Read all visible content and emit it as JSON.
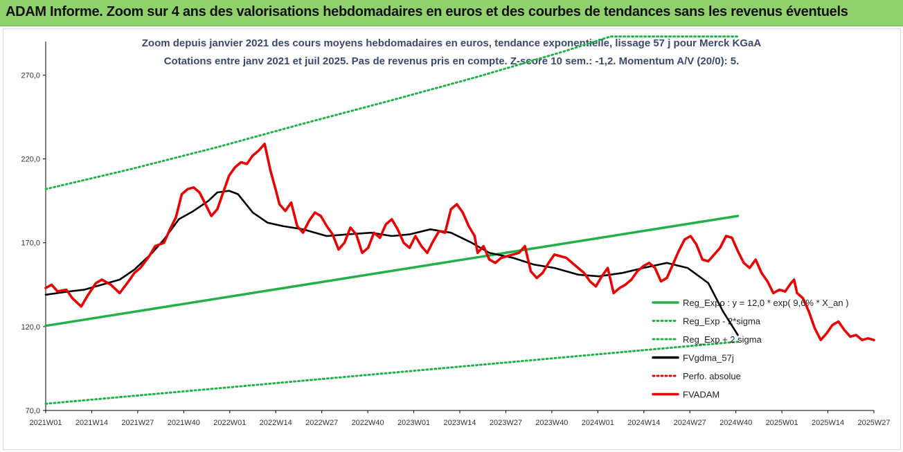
{
  "banner": {
    "text": "ADAM Informe. Zoom sur 4 ans des valorisations hebdomadaires en euros et des courbes de tendances sans les revenus éventuels",
    "color": "#8fd16a"
  },
  "chart_data": {
    "type": "line",
    "title_lines": [
      "Zoom depuis janvier 2021 des cours moyens hebdomadaires en euros, tendance exponentielle, lissage 57 j pour Merck KGaA",
      "Cotations entre janv 2021 et juil 2025. Pas de revenus pris en compte. Z-score 10 sem.: -1,2. Momentum A/V (20/0): 5."
    ],
    "xlabel": "",
    "ylabel": "",
    "ylim": [
      70,
      290
    ],
    "x_ticks": [
      "2021W01",
      "2021W14",
      "2021W27",
      "2021W40",
      "2022W01",
      "2022W14",
      "2022W27",
      "2022W40",
      "2023W01",
      "2023W14",
      "2023W27",
      "2023W40",
      "2024W01",
      "2024W14",
      "2024W27",
      "2024W40",
      "2025W01",
      "2025W14",
      "2025W27"
    ],
    "y_ticks": [
      "70,0",
      "120,0",
      "170,0",
      "220,0",
      "270,0"
    ],
    "y_tick_values": [
      70,
      120,
      170,
      220,
      270
    ],
    "grid": false,
    "legend_position": "right",
    "series": [
      {
        "name": "Reg_Expo : y = 12,0 * exp( 9,6% * X_an )",
        "color": "#22b04b",
        "style": "solid",
        "points": [
          [
            0,
            120.5
          ],
          [
            234,
            186
          ]
        ]
      },
      {
        "name": "Reg_Exp - 2*sigma",
        "color": "#22b04b",
        "style": "dotted",
        "points": [
          [
            0,
            74
          ],
          [
            234,
            111
          ]
        ]
      },
      {
        "name": "Reg_Exp + 2 sigma",
        "color": "#22b04b",
        "style": "dotted",
        "points": [
          [
            0,
            202
          ],
          [
            29,
            214
          ],
          [
            58,
            227
          ],
          [
            87,
            241
          ],
          [
            117,
            255
          ],
          [
            146,
            269
          ],
          [
            175,
            284
          ],
          [
            191,
            293
          ],
          [
            234,
            293
          ]
        ]
      },
      {
        "name": "FVgdma_57j",
        "color": "#000000",
        "style": "solid",
        "points": [
          [
            0,
            139
          ],
          [
            8,
            141
          ],
          [
            13,
            142
          ],
          [
            19,
            145
          ],
          [
            25,
            148
          ],
          [
            30,
            154
          ],
          [
            36,
            164
          ],
          [
            40,
            172
          ],
          [
            45,
            184
          ],
          [
            50,
            189
          ],
          [
            55,
            195
          ],
          [
            58,
            200
          ],
          [
            62,
            201
          ],
          [
            65,
            199
          ],
          [
            70,
            188
          ],
          [
            75,
            182
          ],
          [
            80,
            180
          ],
          [
            87,
            178
          ],
          [
            95,
            174
          ],
          [
            102,
            175
          ],
          [
            110,
            176
          ],
          [
            117,
            174
          ],
          [
            123,
            175
          ],
          [
            130,
            178
          ],
          [
            137,
            176
          ],
          [
            144,
            170
          ],
          [
            150,
            164
          ],
          [
            158,
            161
          ],
          [
            165,
            157
          ],
          [
            172,
            155
          ],
          [
            180,
            151
          ],
          [
            187,
            150
          ],
          [
            195,
            152
          ],
          [
            202,
            155
          ],
          [
            210,
            158
          ],
          [
            217,
            155
          ],
          [
            224,
            146
          ],
          [
            229,
            129
          ],
          [
            234,
            115
          ]
        ]
      },
      {
        "name": "Perfo. absolue",
        "color": "#e00000",
        "style": "dotted",
        "points": []
      },
      {
        "name": "FVADAM",
        "color": "#e60000",
        "style": "solid",
        "points": [
          [
            0,
            143
          ],
          [
            2,
            145
          ],
          [
            4,
            141
          ],
          [
            7,
            142
          ],
          [
            9,
            137
          ],
          [
            12,
            132
          ],
          [
            14,
            138
          ],
          [
            17,
            146
          ],
          [
            19,
            148
          ],
          [
            22,
            145
          ],
          [
            25,
            140
          ],
          [
            28,
            147
          ],
          [
            30,
            152
          ],
          [
            32,
            155
          ],
          [
            35,
            162
          ],
          [
            37,
            168
          ],
          [
            40,
            170
          ],
          [
            42,
            178
          ],
          [
            44,
            185
          ],
          [
            46,
            199
          ],
          [
            48,
            202
          ],
          [
            50,
            203
          ],
          [
            52,
            200
          ],
          [
            54,
            193
          ],
          [
            56,
            186
          ],
          [
            58,
            190
          ],
          [
            60,
            200
          ],
          [
            62,
            210
          ],
          [
            64,
            215
          ],
          [
            66,
            218
          ],
          [
            68,
            217
          ],
          [
            70,
            222
          ],
          [
            72,
            225
          ],
          [
            74,
            229
          ],
          [
            76,
            213
          ],
          [
            78,
            200
          ],
          [
            79,
            193
          ],
          [
            81,
            189
          ],
          [
            83,
            194
          ],
          [
            85,
            180
          ],
          [
            87,
            176
          ],
          [
            89,
            183
          ],
          [
            91,
            188
          ],
          [
            93,
            186
          ],
          [
            95,
            180
          ],
          [
            97,
            175
          ],
          [
            99,
            166
          ],
          [
            101,
            170
          ],
          [
            103,
            179
          ],
          [
            105,
            175
          ],
          [
            107,
            164
          ],
          [
            109,
            167
          ],
          [
            111,
            176
          ],
          [
            113,
            173
          ],
          [
            115,
            181
          ],
          [
            117,
            184
          ],
          [
            119,
            178
          ],
          [
            121,
            170
          ],
          [
            123,
            167
          ],
          [
            125,
            174
          ],
          [
            127,
            168
          ],
          [
            129,
            164
          ],
          [
            131,
            171
          ],
          [
            133,
            177
          ],
          [
            135,
            176
          ],
          [
            137,
            190
          ],
          [
            139,
            193
          ],
          [
            141,
            188
          ],
          [
            143,
            180
          ],
          [
            145,
            174
          ],
          [
            146,
            164
          ],
          [
            148,
            168
          ],
          [
            150,
            160
          ],
          [
            152,
            158
          ],
          [
            154,
            161
          ],
          [
            156,
            162
          ],
          [
            158,
            163
          ],
          [
            160,
            164
          ],
          [
            162,
            168
          ],
          [
            164,
            153
          ],
          [
            166,
            149
          ],
          [
            168,
            152
          ],
          [
            170,
            158
          ],
          [
            172,
            163
          ],
          [
            174,
            162
          ],
          [
            176,
            161
          ],
          [
            178,
            158
          ],
          [
            180,
            155
          ],
          [
            182,
            152
          ],
          [
            184,
            147
          ],
          [
            186,
            144
          ],
          [
            188,
            150
          ],
          [
            190,
            155
          ],
          [
            192,
            140
          ],
          [
            194,
            143
          ],
          [
            196,
            145
          ],
          [
            198,
            148
          ],
          [
            200,
            153
          ],
          [
            202,
            156
          ],
          [
            204,
            158
          ],
          [
            206,
            155
          ],
          [
            208,
            147
          ],
          [
            210,
            149
          ],
          [
            212,
            157
          ],
          [
            214,
            165
          ],
          [
            216,
            172
          ],
          [
            218,
            174
          ],
          [
            220,
            169
          ],
          [
            222,
            160
          ],
          [
            224,
            159
          ],
          [
            226,
            163
          ],
          [
            228,
            167
          ],
          [
            230,
            174
          ],
          [
            232,
            173
          ],
          [
            234,
            165
          ],
          [
            236,
            158
          ],
          [
            238,
            155
          ],
          [
            240,
            160
          ],
          [
            242,
            152
          ],
          [
            244,
            147
          ],
          [
            246,
            140
          ],
          [
            248,
            142
          ],
          [
            250,
            141
          ],
          [
            252,
            146
          ],
          [
            253,
            148
          ],
          [
            254,
            140
          ],
          [
            256,
            137
          ],
          [
            258,
            129
          ],
          [
            260,
            119
          ],
          [
            262,
            112
          ],
          [
            264,
            116
          ],
          [
            266,
            121
          ],
          [
            268,
            123
          ],
          [
            270,
            118
          ],
          [
            272,
            114
          ],
          [
            274,
            115
          ],
          [
            276,
            112
          ],
          [
            278,
            113
          ],
          [
            280,
            112
          ]
        ]
      }
    ]
  }
}
